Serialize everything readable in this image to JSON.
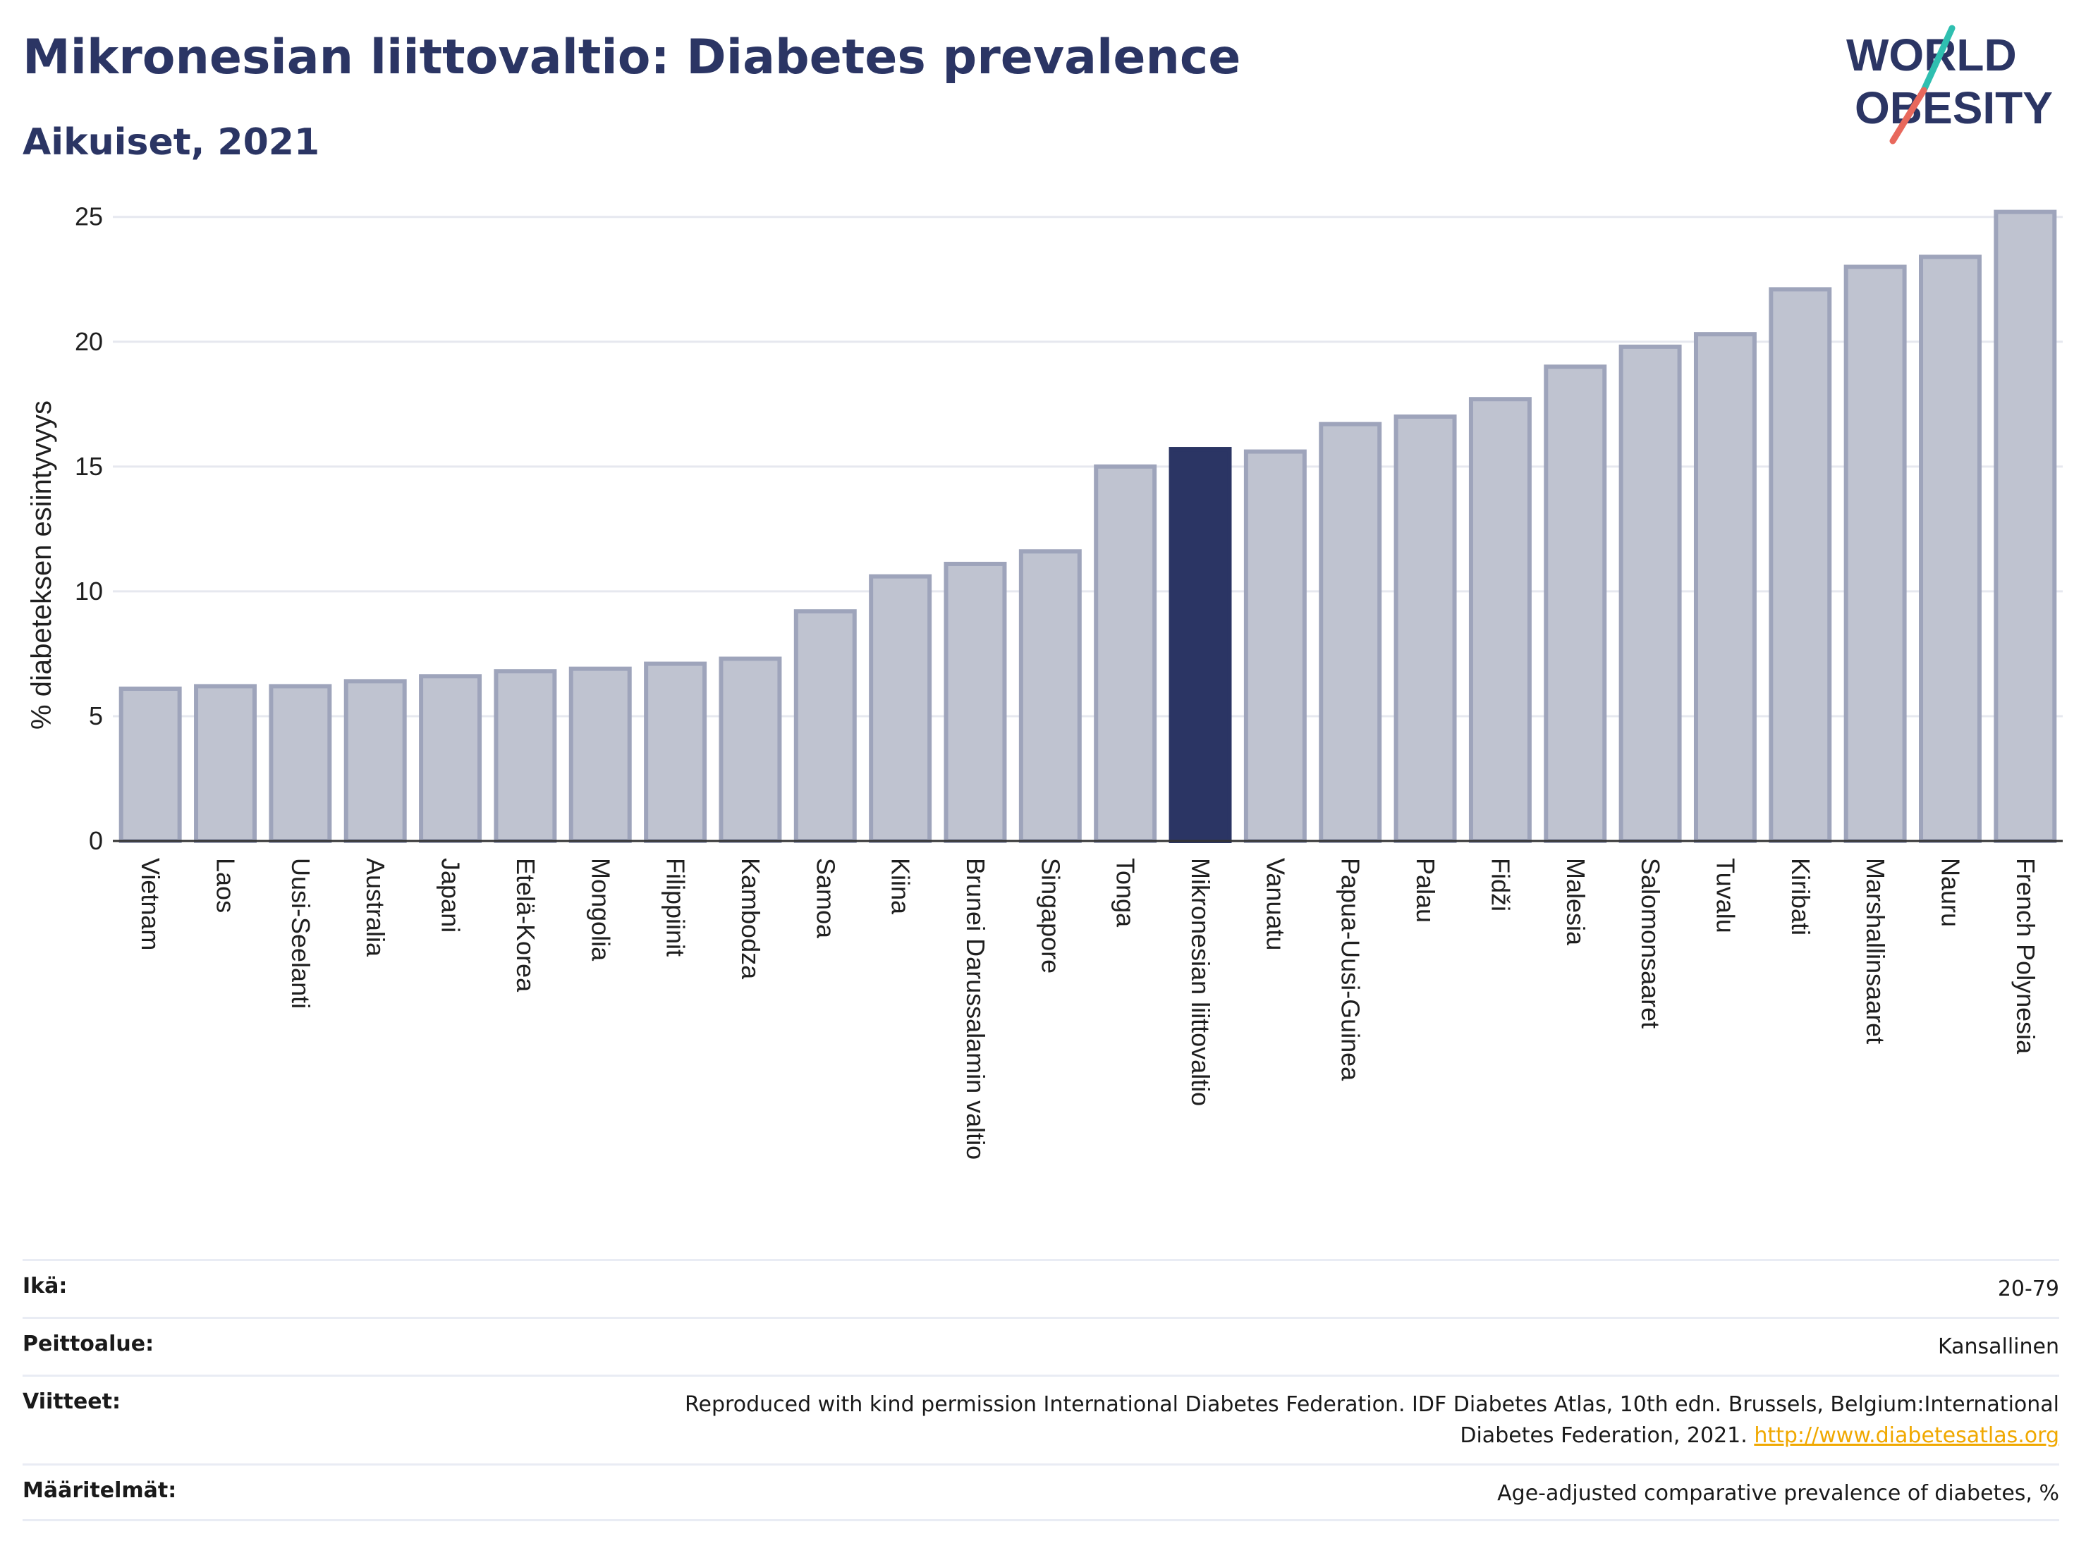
{
  "header": {
    "title": "Mikronesian liittovaltio: Diabetes prevalence",
    "subtitle": "Aikuiset, 2021"
  },
  "logo": {
    "line1": "WORLD",
    "line2": "OBESITY",
    "slash_colors": [
      "#2fbfb0",
      "#e8685c"
    ],
    "text_color": "#2b3564"
  },
  "colors": {
    "bar": "#bfc3d0",
    "bar_stroke": "#9ea4bb",
    "highlight": "#2b3564",
    "grid": "#e6e8ef",
    "axis": "#333333"
  },
  "chart_data": {
    "type": "bar",
    "categories": [
      "Vietnam",
      "Laos",
      "Uusi-Seelanti",
      "Australia",
      "Japani",
      "Etelä-Korea",
      "Mongolia",
      "Filippiinit",
      "Kambodza",
      "Samoa",
      "Kiina",
      "Brunei Darussalamin valtio",
      "Singapore",
      "Tonga",
      "Mikronesian liittovaltio",
      "Vanuatu",
      "Papua-Uusi-Guinea",
      "Palau",
      "Fidži",
      "Malesia",
      "Salomonsaaret",
      "Tuvalu",
      "Kiribati",
      "Marshallinsaaret",
      "Nauru",
      "French Polynesia"
    ],
    "values": [
      6.1,
      6.2,
      6.2,
      6.4,
      6.6,
      6.8,
      6.9,
      7.1,
      7.3,
      9.2,
      10.6,
      11.1,
      11.6,
      15.0,
      15.7,
      15.6,
      16.7,
      17.0,
      17.7,
      19.0,
      19.8,
      20.3,
      22.1,
      23.0,
      23.4,
      25.2
    ],
    "highlight": "Mikronesian liittovaltio",
    "ylabel": "% diabeteksen esiintyvyys",
    "xlabel": "",
    "ylim": [
      0,
      25.5
    ],
    "yticks": [
      0,
      5,
      10,
      15,
      20,
      25
    ],
    "grid": true
  },
  "meta": [
    {
      "label": "Ikä:",
      "value": "20-79"
    },
    {
      "label": "Peittoalue:",
      "value": "Kansallinen"
    },
    {
      "label": "Viitteet:",
      "value": "Reproduced with kind permission International Diabetes Federation.  IDF Diabetes Atlas, 10th edn. Brussels, Belgium:International Diabetes Federation, 2021.",
      "link": "http://www.diabetesatlas.org"
    },
    {
      "label": "Määritelmät:",
      "value": "Age-adjusted comparative prevalence of diabetes, %"
    }
  ]
}
